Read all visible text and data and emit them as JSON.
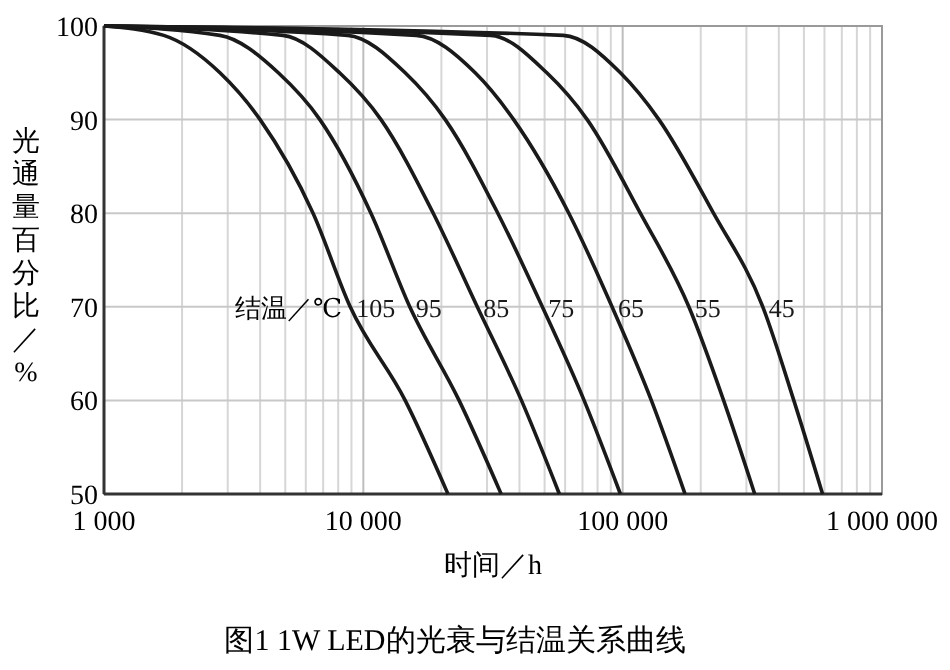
{
  "chart_data": {
    "type": "line",
    "title": "图1 1W LED的光衰与结温关系曲线",
    "xlabel": "时间／h",
    "ylabel": "光通量百分比／%",
    "legend_title": "结温／℃",
    "log": "x",
    "grid": true,
    "line_style": "solid",
    "xlim": [
      1000,
      1000000
    ],
    "xticks": [
      {
        "value": 1000,
        "label": "1 000"
      },
      {
        "value": 10000,
        "label": "10 000"
      },
      {
        "value": 100000,
        "label": "100 000"
      },
      {
        "value": 1000000,
        "label": "1 000 000"
      }
    ],
    "ylim": [
      50,
      100
    ],
    "yticks": [
      50,
      60,
      70,
      80,
      90,
      100
    ],
    "series": [
      {
        "name": "105",
        "color": "#1a1a1a",
        "x": [
          1000,
          1700,
          2800,
          4000,
          6400,
          8900,
          14500,
          21200
        ],
        "values": [
          100,
          99,
          95,
          90,
          80,
          70,
          60,
          50
        ]
      },
      {
        "name": "95",
        "color": "#1a1a1a",
        "x": [
          1000,
          2800,
          4700,
          6800,
          10700,
          15100,
          23400,
          34000
        ],
        "values": [
          100,
          99,
          95,
          90,
          80,
          70,
          60,
          50
        ]
      },
      {
        "name": "85",
        "color": "#1a1a1a",
        "x": [
          1000,
          4900,
          8100,
          11700,
          18600,
          27500,
          40700,
          57000
        ],
        "values": [
          100,
          99,
          95,
          90,
          80,
          70,
          60,
          50
        ]
      },
      {
        "name": "75",
        "color": "#1a1a1a",
        "x": [
          1000,
          8700,
          14500,
          20700,
          33000,
          49000,
          71000,
          98000
        ],
        "values": [
          100,
          99,
          95,
          90,
          80,
          70,
          60,
          50
        ]
      },
      {
        "name": "65",
        "color": "#1a1a1a",
        "x": [
          1000,
          16000,
          27000,
          38000,
          62000,
          91000,
          129000,
          174000
        ],
        "values": [
          100,
          99,
          95,
          90,
          80,
          70,
          60,
          50
        ]
      },
      {
        "name": "55",
        "color": "#1a1a1a",
        "x": [
          1000,
          31000,
          51000,
          73000,
          117000,
          180000,
          245000,
          323000
        ],
        "values": [
          100,
          99,
          95,
          90,
          80,
          70,
          60,
          50
        ]
      },
      {
        "name": "45",
        "color": "#1a1a1a",
        "x": [
          1000,
          59000,
          98000,
          138000,
          224000,
          347000,
          457000,
          590000
        ],
        "values": [
          100,
          99,
          95,
          90,
          80,
          70,
          60,
          50
        ]
      }
    ]
  }
}
